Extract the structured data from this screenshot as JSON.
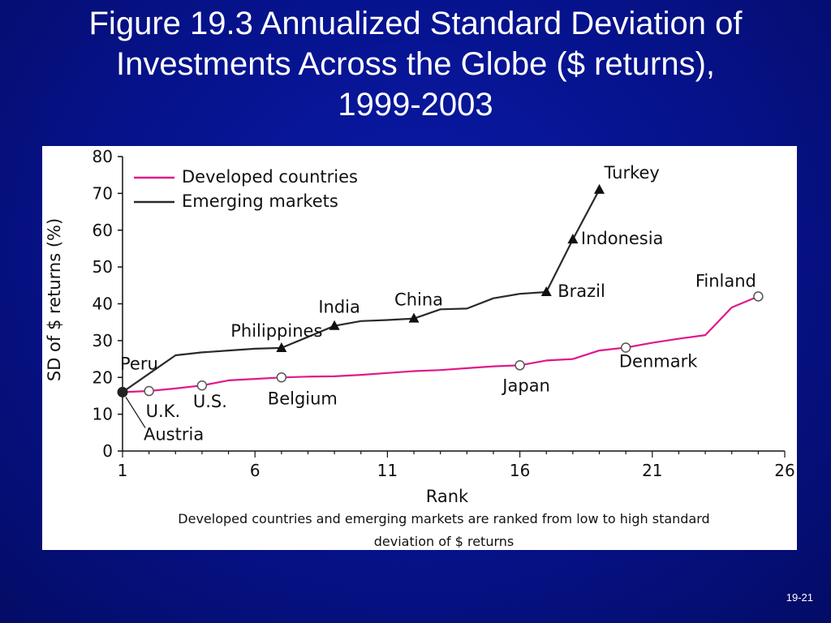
{
  "slide": {
    "title_lines": [
      "Figure 19.3 Annualized Standard Deviation of",
      "Investments Across the Globe ($ returns),",
      "1999-2003"
    ],
    "page_number": "19-21"
  },
  "chart_data": {
    "type": "line",
    "title": "Figure 19.3 Annualized Standard Deviation of Investments Across the Globe ($ returns), 1999-2003",
    "xlabel": "Rank",
    "ylabel": "SD of $ returns (%)",
    "xlim": [
      1,
      26
    ],
    "ylim": [
      0,
      80
    ],
    "x_ticks": [
      1,
      6,
      11,
      16,
      21,
      26
    ],
    "y_ticks": [
      0,
      10,
      20,
      30,
      40,
      50,
      60,
      70,
      80
    ],
    "caption_lines": [
      "Developed countries and emerging markets are ranked from low to high standard",
      "deviation of $ returns"
    ],
    "legend_position": "top-left",
    "series": [
      {
        "name": "Developed countries",
        "color": "#e0188c",
        "points": [
          [
            1,
            16
          ],
          [
            2,
            16.3
          ],
          [
            3,
            17
          ],
          [
            4,
            17.8
          ],
          [
            5,
            19.2
          ],
          [
            6,
            19.6
          ],
          [
            7,
            20
          ],
          [
            8,
            20.2
          ],
          [
            9,
            20.3
          ],
          [
            10,
            20.7
          ],
          [
            11,
            21.2
          ],
          [
            12,
            21.7
          ],
          [
            13,
            22
          ],
          [
            14,
            22.5
          ],
          [
            15,
            23
          ],
          [
            16,
            23.3
          ],
          [
            17,
            24.6
          ],
          [
            18,
            25
          ],
          [
            19,
            27.3
          ],
          [
            20,
            28.1
          ],
          [
            21,
            29.4
          ],
          [
            22,
            30.5
          ],
          [
            23,
            31.5
          ],
          [
            24,
            39
          ],
          [
            25,
            42
          ]
        ],
        "marker": "circle",
        "marked_points": [
          [
            1,
            16
          ],
          [
            2,
            16.3
          ],
          [
            4,
            17.8
          ],
          [
            7,
            20
          ],
          [
            16,
            23.3
          ],
          [
            20,
            28.1
          ],
          [
            25,
            42
          ]
        ]
      },
      {
        "name": "Emerging markets",
        "color": "#2a2a2a",
        "points": [
          [
            1,
            16
          ],
          [
            2,
            21
          ],
          [
            3,
            26
          ],
          [
            4,
            26.8
          ],
          [
            5,
            27.3
          ],
          [
            6,
            27.8
          ],
          [
            7,
            28
          ],
          [
            8,
            31
          ],
          [
            9,
            34
          ],
          [
            10,
            35.3
          ],
          [
            11,
            35.6
          ],
          [
            12,
            36
          ],
          [
            13,
            38.5
          ],
          [
            14,
            38.7
          ],
          [
            15,
            41.5
          ],
          [
            16,
            42.7
          ],
          [
            17,
            43.2
          ],
          [
            18,
            57.5
          ],
          [
            19,
            71
          ]
        ],
        "marker": "triangle",
        "marked_points": [
          [
            7,
            28
          ],
          [
            9,
            34
          ],
          [
            12,
            36
          ],
          [
            17,
            43.2
          ],
          [
            18,
            57.5
          ],
          [
            19,
            71
          ]
        ]
      }
    ],
    "annotations": [
      {
        "text": "Turkey",
        "x": 19,
        "y": 71
      },
      {
        "text": "Indonesia",
        "x": 18,
        "y": 57.5
      },
      {
        "text": "Brazil",
        "x": 17,
        "y": 43.2
      },
      {
        "text": "China",
        "x": 12,
        "y": 36
      },
      {
        "text": "India",
        "x": 9,
        "y": 34
      },
      {
        "text": "Philippines",
        "x": 7,
        "y": 28
      },
      {
        "text": "Peru",
        "x": 1,
        "y": 16
      },
      {
        "text": "U.K.",
        "x": 2,
        "y": 16.3
      },
      {
        "text": "U.S.",
        "x": 4,
        "y": 17.8
      },
      {
        "text": "Austria",
        "x": 1,
        "y": 16
      },
      {
        "text": "Belgium",
        "x": 7,
        "y": 20
      },
      {
        "text": "Japan",
        "x": 16,
        "y": 23.3
      },
      {
        "text": "Denmark",
        "x": 20,
        "y": 28.1
      },
      {
        "text": "Finland",
        "x": 25,
        "y": 42
      }
    ]
  }
}
